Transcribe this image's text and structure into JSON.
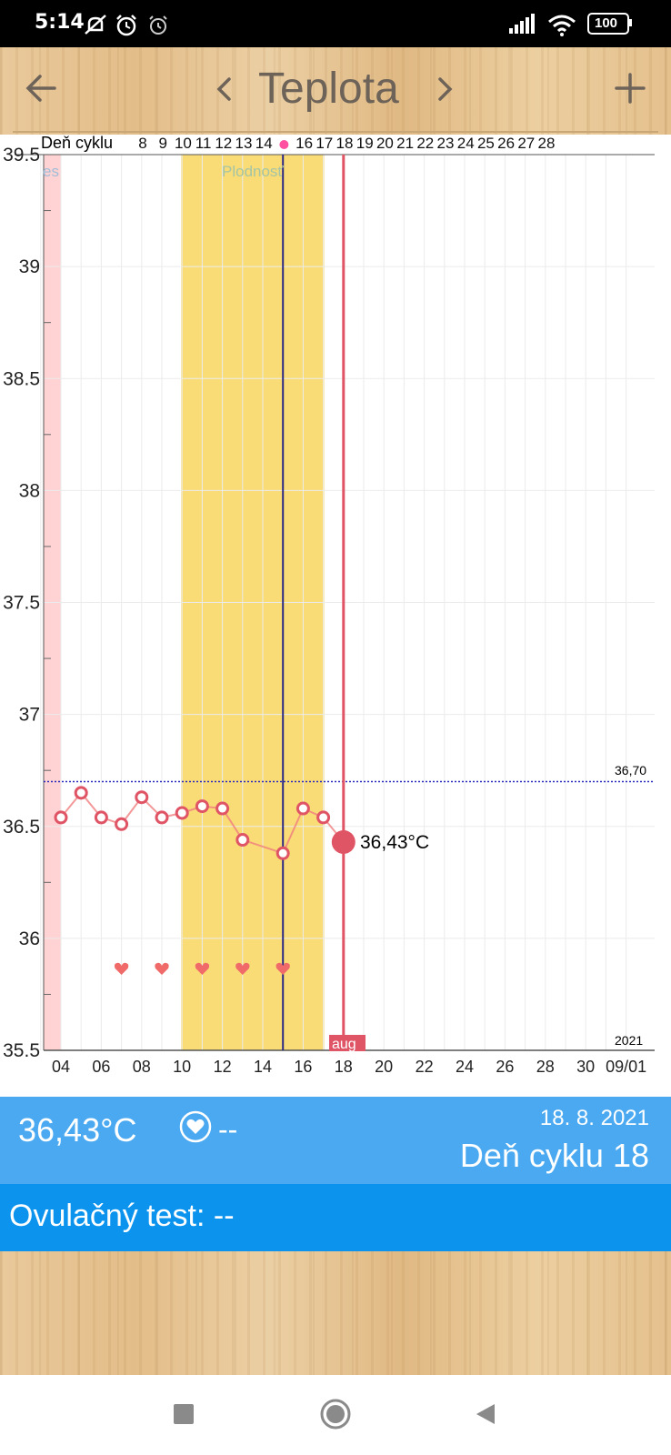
{
  "status": {
    "time": "5:14",
    "battery": "100"
  },
  "toolbar": {
    "title": "Teplota",
    "back_icon": "arrow-left-icon",
    "prev_icon": "chevron-left-icon",
    "next_icon": "chevron-right-icon",
    "add_icon": "plus-icon"
  },
  "chart": {
    "cycle_label": "Deň cyklu",
    "fertility_label": "Plodnosť",
    "period_label": "es",
    "threshold_label": "36,70",
    "year_label": "2021",
    "month_label": "aug",
    "current_label": "36,43°C",
    "colors": {
      "fertile": "#f9dc76",
      "period": "#ffd3d3",
      "line": "#f08080",
      "marker": "#e05566",
      "ovulation_line": "#2d2a86",
      "threshold": "#2b2bbd"
    }
  },
  "chart_data": {
    "type": "line",
    "x_unit": "day of month (August 2021)",
    "ylim": [
      35.5,
      39.5
    ],
    "yticks": [
      "35.5",
      "36",
      "36.5",
      "37",
      "37.5",
      "38",
      "38.5",
      "39",
      "39.5"
    ],
    "xlim": [
      3,
      32
    ],
    "xticks": [
      {
        "d": 4,
        "label": "04"
      },
      {
        "d": 6,
        "label": "06"
      },
      {
        "d": 8,
        "label": "08"
      },
      {
        "d": 10,
        "label": "10"
      },
      {
        "d": 12,
        "label": "12"
      },
      {
        "d": 14,
        "label": "14"
      },
      {
        "d": 16,
        "label": "16"
      },
      {
        "d": 18,
        "label": "18"
      },
      {
        "d": 20,
        "label": "20"
      },
      {
        "d": 22,
        "label": "22"
      },
      {
        "d": 24,
        "label": "24"
      },
      {
        "d": 26,
        "label": "26"
      },
      {
        "d": 28,
        "label": "28"
      },
      {
        "d": 30,
        "label": "30"
      },
      {
        "d": 32,
        "label": "09/01"
      }
    ],
    "cycle_days": [
      {
        "d": 8,
        "label": "8"
      },
      {
        "d": 9,
        "label": "9"
      },
      {
        "d": 10,
        "label": "10"
      },
      {
        "d": 11,
        "label": "11"
      },
      {
        "d": 12,
        "label": "12"
      },
      {
        "d": 13,
        "label": "13"
      },
      {
        "d": 14,
        "label": "14"
      },
      {
        "d": 16,
        "label": "16"
      },
      {
        "d": 17,
        "label": "17"
      },
      {
        "d": 18,
        "label": "18"
      },
      {
        "d": 19,
        "label": "19"
      },
      {
        "d": 20,
        "label": "20"
      },
      {
        "d": 21,
        "label": "21"
      },
      {
        "d": 22,
        "label": "22"
      },
      {
        "d": 23,
        "label": "23"
      },
      {
        "d": 24,
        "label": "24"
      },
      {
        "d": 25,
        "label": "25"
      },
      {
        "d": 26,
        "label": "26"
      },
      {
        "d": 27,
        "label": "27"
      },
      {
        "d": 28,
        "label": "28"
      }
    ],
    "ovulation_day": 15,
    "fertile_range": [
      10,
      17
    ],
    "period_range": [
      3,
      3.9
    ],
    "threshold": 36.7,
    "series": [
      {
        "x": [
          4,
          5,
          6,
          7,
          8,
          9,
          10,
          11,
          12,
          13,
          15,
          16,
          17,
          18
        ],
        "values": [
          36.54,
          36.65,
          36.54,
          36.51,
          36.63,
          36.54,
          36.56,
          36.59,
          36.58,
          36.44,
          36.38,
          36.58,
          36.54,
          36.43
        ]
      }
    ],
    "intercourse_days": [
      7,
      9,
      11,
      13,
      15
    ],
    "selected_day": 18,
    "selected_value": 36.43
  },
  "info": {
    "temperature": "36,43°C",
    "heart_icon": "heart-circle-icon",
    "heart_value": "--",
    "date": "18. 8. 2021",
    "cycle_day": "Deň cyklu 18"
  },
  "ovulation_test": {
    "label": "Ovulačný test: --"
  },
  "navbar": {
    "recents_icon": "square-icon",
    "home_icon": "circle-icon",
    "back_icon": "triangle-back-icon"
  }
}
